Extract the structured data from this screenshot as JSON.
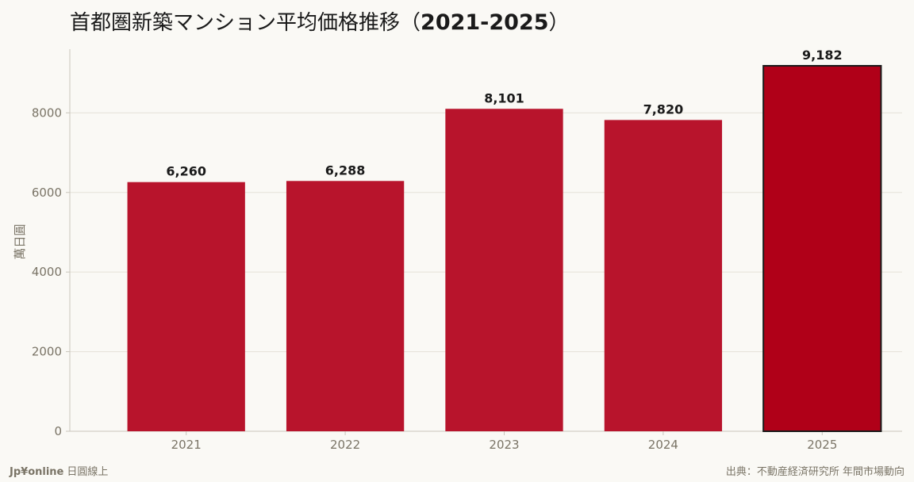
{
  "chart_data": {
    "type": "bar",
    "title_main": "首都圏新築マンション平均価格推移",
    "title_paren_open": "（",
    "title_years": "2021-2025",
    "title_paren_close": "）",
    "ylabel": "萬日圓",
    "xlabel": "",
    "categories": [
      "2021",
      "2022",
      "2023",
      "2024",
      "2025"
    ],
    "values": [
      6260,
      6288,
      8101,
      7820,
      9182
    ],
    "value_labels": [
      "6,260",
      "6,288",
      "8,101",
      "7,820",
      "9,182"
    ],
    "ylim": [
      0,
      9600
    ],
    "yticks": [
      0,
      2000,
      4000,
      6000,
      8000
    ],
    "ytick_labels": [
      "0",
      "2000",
      "4000",
      "6000",
      "8000"
    ],
    "grid": true,
    "highlight_index": 4,
    "colors": {
      "bar": "#b8142c",
      "bar_highlight": "#b00018",
      "highlight_outline": "#1a1a1a",
      "grid": "#e4e1d8",
      "axis": "#c9c5bb",
      "background": "#faf9f5"
    }
  },
  "footer": {
    "brand_bold": "Jp¥online",
    "brand_sub": "日圓線上",
    "source": "出典：不動産経済研究所 年間市場動向"
  }
}
